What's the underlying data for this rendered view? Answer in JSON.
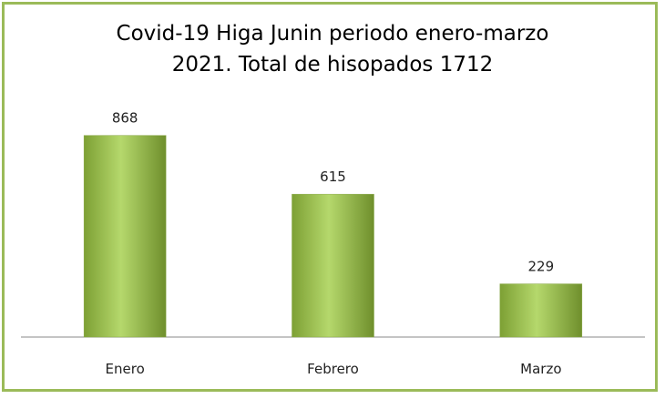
{
  "chart_data": {
    "type": "bar",
    "title": "Covid-19 Higa Junin periodo enero-marzo\n2021. Total de hisopados 1712",
    "categories": [
      "Enero",
      "Febrero",
      "Marzo"
    ],
    "values": [
      868,
      615,
      229
    ],
    "xlabel": "",
    "ylabel": "",
    "ylim": [
      0,
      1000
    ],
    "grid": false,
    "legend": "none",
    "bar_color": "#9bbb59",
    "border_color": "#9bbb59"
  }
}
